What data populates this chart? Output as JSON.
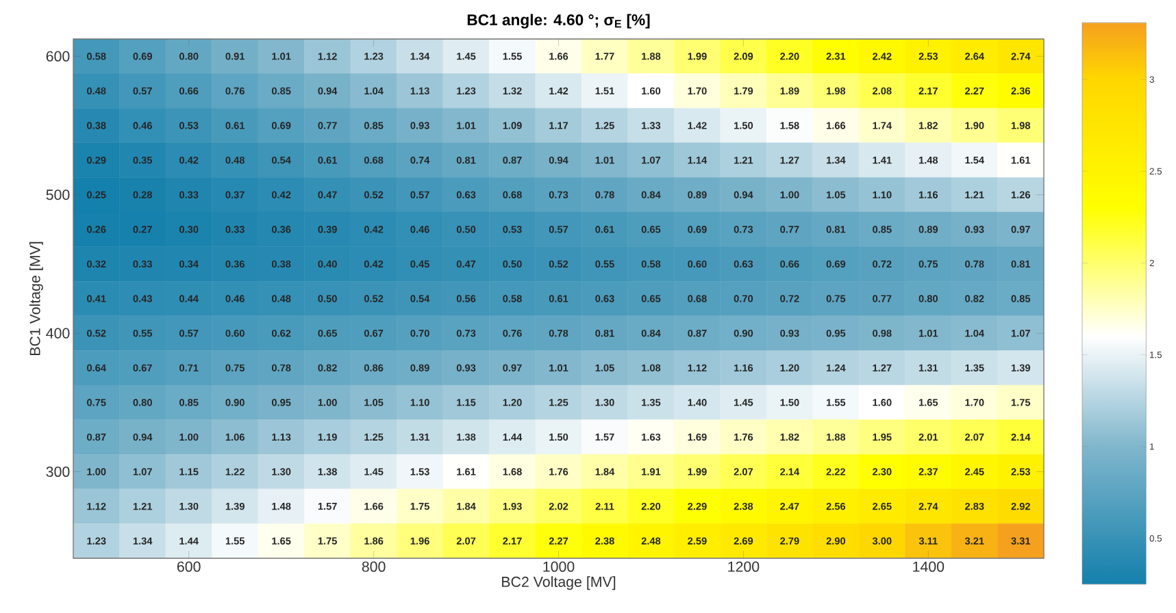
{
  "chart_data": {
    "type": "heatmap",
    "title": "BC1 angle: 4.60 °; σ$_{E}$ [%]",
    "xlabel": "BC2 Voltage [MV]",
    "ylabel": "BC1 Voltage [MV]",
    "x": [
      500,
      550,
      600,
      650,
      700,
      750,
      800,
      850,
      900,
      950,
      1000,
      1050,
      1100,
      1150,
      1200,
      1250,
      1300,
      1350,
      1400,
      1450,
      1500
    ],
    "y": [
      600,
      575,
      550,
      525,
      500,
      475,
      450,
      425,
      400,
      375,
      350,
      325,
      300,
      275,
      250
    ],
    "xlim": [
      475,
      1525
    ],
    "ylim": [
      237.5,
      612.5
    ],
    "xticks": [
      600,
      800,
      1000,
      1200,
      1400
    ],
    "yticks": [
      300,
      400,
      500,
      600
    ],
    "clim": [
      0.25,
      3.31
    ],
    "cticks": [
      0.5,
      1,
      1.5,
      2,
      2.5,
      3
    ],
    "cells": [
      [
        0.58,
        0.69,
        0.8,
        0.91,
        1.01,
        1.12,
        1.23,
        1.34,
        1.45,
        1.55,
        1.66,
        1.77,
        1.88,
        1.99,
        2.09,
        2.2,
        2.31,
        2.42,
        2.53,
        2.64,
        2.74
      ],
      [
        0.48,
        0.57,
        0.66,
        0.76,
        0.85,
        0.94,
        1.04,
        1.13,
        1.23,
        1.32,
        1.42,
        1.51,
        1.6,
        1.7,
        1.79,
        1.89,
        1.98,
        2.08,
        2.17,
        2.27,
        2.36
      ],
      [
        0.38,
        0.46,
        0.53,
        0.61,
        0.69,
        0.77,
        0.85,
        0.93,
        1.01,
        1.09,
        1.17,
        1.25,
        1.33,
        1.42,
        1.5,
        1.58,
        1.66,
        1.74,
        1.82,
        1.9,
        1.98
      ],
      [
        0.29,
        0.35,
        0.42,
        0.48,
        0.54,
        0.61,
        0.68,
        0.74,
        0.81,
        0.87,
        0.94,
        1.01,
        1.07,
        1.14,
        1.21,
        1.27,
        1.34,
        1.41,
        1.48,
        1.54,
        1.61
      ],
      [
        0.25,
        0.28,
        0.33,
        0.37,
        0.42,
        0.47,
        0.52,
        0.57,
        0.63,
        0.68,
        0.73,
        0.78,
        0.84,
        0.89,
        0.94,
        1.0,
        1.05,
        1.1,
        1.16,
        1.21,
        1.26
      ],
      [
        0.26,
        0.27,
        0.3,
        0.33,
        0.36,
        0.39,
        0.42,
        0.46,
        0.5,
        0.53,
        0.57,
        0.61,
        0.65,
        0.69,
        0.73,
        0.77,
        0.81,
        0.85,
        0.89,
        0.93,
        0.97
      ],
      [
        0.32,
        0.33,
        0.34,
        0.36,
        0.38,
        0.4,
        0.42,
        0.45,
        0.47,
        0.5,
        0.52,
        0.55,
        0.58,
        0.6,
        0.63,
        0.66,
        0.69,
        0.72,
        0.75,
        0.78,
        0.81
      ],
      [
        0.41,
        0.43,
        0.44,
        0.46,
        0.48,
        0.5,
        0.52,
        0.54,
        0.56,
        0.58,
        0.61,
        0.63,
        0.65,
        0.68,
        0.7,
        0.72,
        0.75,
        0.77,
        0.8,
        0.82,
        0.85
      ],
      [
        0.52,
        0.55,
        0.57,
        0.6,
        0.62,
        0.65,
        0.67,
        0.7,
        0.73,
        0.76,
        0.78,
        0.81,
        0.84,
        0.87,
        0.9,
        0.93,
        0.95,
        0.98,
        1.01,
        1.04,
        1.07
      ],
      [
        0.64,
        0.67,
        0.71,
        0.75,
        0.78,
        0.82,
        0.86,
        0.89,
        0.93,
        0.97,
        1.01,
        1.05,
        1.08,
        1.12,
        1.16,
        1.2,
        1.24,
        1.27,
        1.31,
        1.35,
        1.39
      ],
      [
        0.75,
        0.8,
        0.85,
        0.9,
        0.95,
        1.0,
        1.05,
        1.1,
        1.15,
        1.2,
        1.25,
        1.3,
        1.35,
        1.4,
        1.45,
        1.5,
        1.55,
        1.6,
        1.65,
        1.7,
        1.75
      ],
      [
        0.87,
        0.94,
        1.0,
        1.06,
        1.13,
        1.19,
        1.25,
        1.31,
        1.38,
        1.44,
        1.5,
        1.57,
        1.63,
        1.69,
        1.76,
        1.82,
        1.88,
        1.95,
        2.01,
        2.07,
        2.14
      ],
      [
        1.0,
        1.07,
        1.15,
        1.22,
        1.3,
        1.38,
        1.45,
        1.53,
        1.61,
        1.68,
        1.76,
        1.84,
        1.91,
        1.99,
        2.07,
        2.14,
        2.22,
        2.3,
        2.37,
        2.45,
        2.53
      ],
      [
        1.12,
        1.21,
        1.3,
        1.39,
        1.48,
        1.57,
        1.66,
        1.75,
        1.84,
        1.93,
        2.02,
        2.11,
        2.2,
        2.29,
        2.38,
        2.47,
        2.56,
        2.65,
        2.74,
        2.83,
        2.92
      ],
      [
        1.23,
        1.34,
        1.44,
        1.55,
        1.65,
        1.75,
        1.86,
        1.96,
        2.07,
        2.17,
        2.27,
        2.38,
        2.48,
        2.59,
        2.69,
        2.79,
        2.9,
        3.0,
        3.11,
        3.21,
        3.31
      ]
    ],
    "cell_labels": [
      [
        "0.58",
        "0.69",
        "0.80",
        "0.91",
        "1.01",
        "1.12",
        "1.23",
        "1.34",
        "1.45",
        "1.55",
        "1.66",
        "1.77",
        "1.88",
        "1.99",
        "2.09",
        "2.20",
        "2.31",
        "2.42",
        "2.53",
        "2.64",
        "2.74"
      ],
      [
        "0.48",
        "0.57",
        "0.66",
        "0.76",
        "0.85",
        "0.94",
        "1.04",
        "1.13",
        "1.23",
        "1.32",
        "1.42",
        "1.51",
        "1.60",
        "1.70",
        "1.79",
        "1.89",
        "1.98",
        "2.08",
        "2.17",
        "2.27",
        "2.36"
      ],
      [
        "0.38",
        "0.46",
        "0.53",
        "0.61",
        "0.69",
        "0.77",
        "0.85",
        "0.93",
        "1.01",
        "1.09",
        "1.17",
        "1.25",
        "1.33",
        "1.42",
        "1.50",
        "1.58",
        "1.66",
        "1.74",
        "1.82",
        "1.90",
        "1.98"
      ],
      [
        "0.29",
        "0.35",
        "0.42",
        "0.48",
        "0.54",
        "0.61",
        "0.68",
        "0.74",
        "0.81",
        "0.87",
        "0.94",
        "1.01",
        "1.07",
        "1.14",
        "1.21",
        "1.27",
        "1.34",
        "1.41",
        "1.48",
        "1.54",
        "1.61"
      ],
      [
        "0.25",
        "0.28",
        "0.33",
        "0.37",
        "0.42",
        "0.47",
        "0.52",
        "0.57",
        "0.63",
        "0.68",
        "0.73",
        "0.78",
        "0.84",
        "0.89",
        "0.94",
        "1.00",
        "1.05",
        "1.10",
        "1.16",
        "1.21",
        "1.26"
      ],
      [
        "0.26",
        "0.27",
        "0.30",
        "0.33",
        "0.36",
        "0.39",
        "0.42",
        "0.46",
        "0.50",
        "0.53",
        "0.57",
        "0.61",
        "0.65",
        "0.69",
        "0.73",
        "0.77",
        "0.81",
        "0.85",
        "0.89",
        "0.93",
        "0.97"
      ],
      [
        "0.32",
        "0.33",
        "0.34",
        "0.36",
        "0.38",
        "0.40",
        "0.42",
        "0.45",
        "0.47",
        "0.50",
        "0.52",
        "0.55",
        "0.58",
        "0.60",
        "0.63",
        "0.66",
        "0.69",
        "0.72",
        "0.75",
        "0.78",
        "0.81"
      ],
      [
        "0.41",
        "0.43",
        "0.44",
        "0.46",
        "0.48",
        "0.50",
        "0.52",
        "0.54",
        "0.56",
        "0.58",
        "0.61",
        "0.63",
        "0.65",
        "0.68",
        "0.70",
        "0.72",
        "0.75",
        "0.77",
        "0.80",
        "0.82",
        "0.85"
      ],
      [
        "0.52",
        "0.55",
        "0.57",
        "0.60",
        "0.62",
        "0.65",
        "0.67",
        "0.70",
        "0.73",
        "0.76",
        "0.78",
        "0.81",
        "0.84",
        "0.87",
        "0.90",
        "0.93",
        "0.95",
        "0.98",
        "1.01",
        "1.04",
        "1.07"
      ],
      [
        "0.64",
        "0.67",
        "0.71",
        "0.75",
        "0.78",
        "0.82",
        "0.86",
        "0.89",
        "0.93",
        "0.97",
        "1.01",
        "1.05",
        "1.08",
        "1.12",
        "1.16",
        "1.20",
        "1.24",
        "1.27",
        "1.31",
        "1.35",
        "1.39"
      ],
      [
        "0.75",
        "0.80",
        "0.85",
        "0.90",
        "0.95",
        "1.00",
        "1.05",
        "1.10",
        "1.15",
        "1.20",
        "1.25",
        "1.30",
        "1.35",
        "1.40",
        "1.45",
        "1.50",
        "1.55",
        "1.60",
        "1.65",
        "1.70",
        "1.75"
      ],
      [
        "0.87",
        "0.94",
        "1.00",
        "1.06",
        "1.13",
        "1.19",
        "1.25",
        "1.31",
        "1.38",
        "1.44",
        "1.50",
        "1.57",
        "1.63",
        "1.69",
        "1.76",
        "1.82",
        "1.88",
        "1.95",
        "2.01",
        "2.07",
        "2.14"
      ],
      [
        "1.00",
        "1.07",
        "1.15",
        "1.22",
        "1.30",
        "1.38",
        "1.45",
        "1.53",
        "1.61",
        "1.68",
        "1.76",
        "1.84",
        "1.91",
        "1.99",
        "2.07",
        "2.14",
        "2.22",
        "2.30",
        "2.37",
        "2.45",
        "2.53"
      ],
      [
        "1.12",
        "1.21",
        "1.30",
        "1.39",
        "1.48",
        "1.57",
        "1.66",
        "1.75",
        "1.84",
        "1.93",
        "2.02",
        "2.11",
        "2.20",
        "2.29",
        "2.38",
        "2.47",
        "2.56",
        "2.65",
        "2.74",
        "2.83",
        "2.92"
      ],
      [
        "1.23",
        "1.34",
        "1.44",
        "1.55",
        "1.65",
        "1.75",
        "1.86",
        "1.96",
        "2.07",
        "2.17",
        "2.27",
        "2.38",
        "2.48",
        "2.59",
        "2.69",
        "2.79",
        "2.90",
        "3.00",
        "3.11",
        "3.21",
        "3.31"
      ]
    ]
  }
}
